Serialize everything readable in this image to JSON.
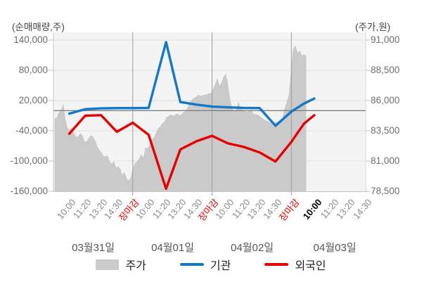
{
  "axes": {
    "left_title": "(순매매량,주)",
    "right_title": "(주가,원)",
    "left_tick_labels": [
      "140,000",
      "80,000",
      "20,000",
      "-40,000",
      "-100,000",
      "-160,000"
    ],
    "right_tick_labels": [
      "91,000",
      "88,500",
      "86,000",
      "83,500",
      "81,000",
      "78,500"
    ]
  },
  "x_axis": {
    "tick_labels": [
      {
        "text": "10:00",
        "u": 1,
        "style": "normal"
      },
      {
        "text": "11:20",
        "u": 2,
        "style": "normal"
      },
      {
        "text": "13:20",
        "u": 3,
        "style": "normal"
      },
      {
        "text": "14:30",
        "u": 4,
        "style": "normal"
      },
      {
        "text": "장마감",
        "u": 5,
        "style": "close"
      },
      {
        "text": "10:00",
        "u": 6,
        "style": "normal"
      },
      {
        "text": "11:20",
        "u": 7,
        "style": "normal"
      },
      {
        "text": "13:20",
        "u": 8,
        "style": "normal"
      },
      {
        "text": "14:30",
        "u": 9,
        "style": "normal"
      },
      {
        "text": "장마감",
        "u": 10,
        "style": "close"
      },
      {
        "text": "10:00",
        "u": 11,
        "style": "normal"
      },
      {
        "text": "11:20",
        "u": 12,
        "style": "normal"
      },
      {
        "text": "13:20",
        "u": 13,
        "style": "normal"
      },
      {
        "text": "14:30",
        "u": 14,
        "style": "normal"
      },
      {
        "text": "장마감",
        "u": 15.1,
        "style": "close"
      },
      {
        "text": "10:00",
        "u": 16.56,
        "style": "current"
      },
      {
        "text": "11:20",
        "u": 17.6,
        "style": "normal"
      },
      {
        "text": "13:20",
        "u": 18.64,
        "style": "normal"
      },
      {
        "text": "14:30",
        "u": 19.68,
        "style": "normal"
      }
    ],
    "date_labels": [
      {
        "text": "03월31일",
        "u": 2.51
      },
      {
        "text": "04월01일",
        "u": 7.52
      },
      {
        "text": "04월02일",
        "u": 12.53
      },
      {
        "text": "04월03일",
        "u": 17.74
      }
    ]
  },
  "legend": [
    {
      "label": "주가",
      "type": "area",
      "color": "#cacaca"
    },
    {
      "label": "기관",
      "type": "line",
      "color": "#1278c8"
    },
    {
      "label": "외국인",
      "type": "line",
      "color": "#e60000"
    }
  ],
  "chart_data": {
    "type": "area+line combo, 4-day intraday stock chart",
    "left_axis": {
      "title": "(순매매량,주)",
      "min": -160000,
      "max": 140000,
      "tick_step": 60000,
      "ticks": [
        140000,
        80000,
        20000,
        -40000,
        -100000,
        -160000
      ]
    },
    "right_axis": {
      "title": "(주가,원)",
      "min": 78500,
      "max": 91000,
      "tick_step": 2500,
      "ticks": [
        91000,
        88500,
        86000,
        83500,
        81000,
        78500
      ]
    },
    "x_days": [
      "03월31일",
      "04월01일",
      "04월02일",
      "04월03일"
    ],
    "x_times_per_day": [
      "10:00",
      "11:20",
      "13:20",
      "14:30",
      "장마감"
    ],
    "x_unit_note": "u = tick-interval units, 5 per trading day, day d spans u=[5d,5d+5]",
    "day_separators_u": [
      5,
      10,
      15
    ],
    "zero_line_value": 0,
    "colors": {
      "grid": "#dfdfdf",
      "separator": "#9b9b9b",
      "zero_line": "#7e7e7e",
      "axis": "#c3c3c3",
      "plot_bg": "#f4f4f4"
    },
    "series": [
      {
        "name": "주가",
        "type": "area",
        "axis": "right",
        "color": "#cacaca",
        "u_start": 0.09,
        "u_end": 15.92,
        "values": [
          84500,
          84600,
          85000,
          85200,
          85650,
          84300,
          83700,
          83560,
          83740,
          83300,
          83000,
          82980,
          83270,
          83100,
          82600,
          82570,
          82860,
          83100,
          83000,
          82700,
          82220,
          81900,
          81700,
          81400,
          81350,
          81410,
          80900,
          80770,
          80940,
          80400,
          80540,
          80300,
          79780,
          80070,
          79500,
          79380,
          79600,
          80360,
          80800,
          80940,
          81200,
          81520,
          81230,
          82100,
          82000,
          82390,
          82800,
          82900,
          83300,
          83670,
          83840,
          84100,
          84250,
          84600,
          84700,
          84830,
          84720,
          84800,
          84900,
          84750,
          84830,
          85000,
          85120,
          85410,
          85800,
          86060,
          86200,
          86290,
          86460,
          86350,
          86400,
          86460,
          86500,
          86580,
          86600,
          86900,
          87340,
          87800,
          87170,
          87460,
          87920,
          88200,
          87230,
          86060,
          85300,
          85130,
          85200,
          85880,
          85300,
          85190,
          85130,
          85010,
          85130,
          85190,
          84900,
          84840,
          84840,
          84720,
          84550,
          84430,
          84310,
          84260,
          84140,
          84260,
          84140,
          84260,
          84100,
          84260,
          84550,
          85300,
          85880,
          86460,
          88380,
          90240,
          90530,
          89900,
          90100,
          89700,
          89800,
          89700
        ]
      },
      {
        "name": "기관",
        "type": "line",
        "axis": "left",
        "color": "#1278c8",
        "points": [
          [
            1,
            -6000
          ],
          [
            2,
            3000
          ],
          [
            3,
            4500
          ],
          [
            4,
            5000
          ],
          [
            5,
            5000
          ],
          [
            6,
            5500
          ],
          [
            7.1,
            136000
          ],
          [
            8,
            17000
          ],
          [
            9,
            12000
          ],
          [
            10,
            8000
          ],
          [
            11,
            6500
          ],
          [
            12,
            5500
          ],
          [
            13,
            5000
          ],
          [
            14,
            -30000
          ],
          [
            15,
            -2000
          ],
          [
            15.79,
            14000
          ],
          [
            16.45,
            24000
          ]
        ]
      },
      {
        "name": "외국인",
        "type": "line",
        "axis": "left",
        "color": "#e60000",
        "points": [
          [
            1,
            -46000
          ],
          [
            2,
            -10000
          ],
          [
            3,
            -9000
          ],
          [
            4,
            -42000
          ],
          [
            5,
            -24000
          ],
          [
            6,
            -48000
          ],
          [
            7.1,
            -155000
          ],
          [
            8,
            -77000
          ],
          [
            9,
            -61000
          ],
          [
            10,
            -50000
          ],
          [
            11,
            -65000
          ],
          [
            12,
            -72000
          ],
          [
            13,
            -83000
          ],
          [
            14,
            -101000
          ],
          [
            15,
            -62000
          ],
          [
            15.79,
            -26000
          ],
          [
            16.45,
            -9000
          ]
        ]
      }
    ]
  }
}
